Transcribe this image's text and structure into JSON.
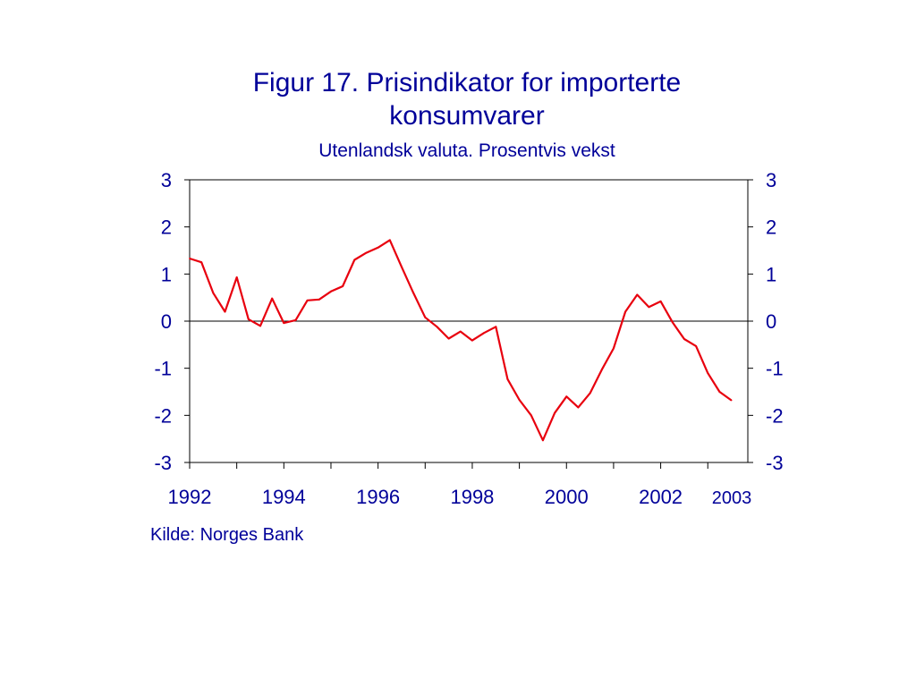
{
  "chart_data": {
    "type": "line",
    "title": "Figur 17. Prisindikator for importerte konsumvarer",
    "subtitle": "Utenlandsk valuta. Prosentvis vekst",
    "source": "Kilde: Norges Bank",
    "xlabel": "",
    "ylabel": "",
    "xlim": [
      1992,
      2003.85
    ],
    "ylim": [
      -3,
      3
    ],
    "y_ticks": [
      "-3",
      "-2",
      "-1",
      "0",
      "1",
      "2",
      "3"
    ],
    "x_ticks": [
      "1992",
      "1994",
      "1996",
      "1998",
      "2000",
      "2002",
      "2003"
    ],
    "grid": false,
    "line_color": "#e8000e",
    "text_color": "#000099",
    "series": [
      {
        "values": [
          [
            1992.0,
            1.33
          ],
          [
            1992.25,
            1.25
          ],
          [
            1992.5,
            0.6
          ],
          [
            1992.75,
            0.2
          ],
          [
            1993.0,
            0.93
          ],
          [
            1993.25,
            0.04
          ],
          [
            1993.5,
            -0.1
          ],
          [
            1993.75,
            0.48
          ],
          [
            1994.0,
            -0.04
          ],
          [
            1994.25,
            0.02
          ],
          [
            1994.5,
            0.44
          ],
          [
            1994.75,
            0.46
          ],
          [
            1995.0,
            0.63
          ],
          [
            1995.25,
            0.74
          ],
          [
            1995.5,
            1.3
          ],
          [
            1995.75,
            1.45
          ],
          [
            1996.0,
            1.56
          ],
          [
            1996.25,
            1.72
          ],
          [
            1996.5,
            1.15
          ],
          [
            1996.75,
            0.6
          ],
          [
            1997.0,
            0.08
          ],
          [
            1997.25,
            -0.12
          ],
          [
            1997.5,
            -0.37
          ],
          [
            1997.75,
            -0.22
          ],
          [
            1998.0,
            -0.41
          ],
          [
            1998.25,
            -0.25
          ],
          [
            1998.5,
            -0.12
          ],
          [
            1998.75,
            -1.23
          ],
          [
            1999.0,
            -1.67
          ],
          [
            1999.25,
            -2.0
          ],
          [
            1999.5,
            -2.53
          ],
          [
            1999.75,
            -1.95
          ],
          [
            2000.0,
            -1.6
          ],
          [
            2000.25,
            -1.83
          ],
          [
            2000.5,
            -1.53
          ],
          [
            2000.75,
            -1.03
          ],
          [
            2001.0,
            -0.58
          ],
          [
            2001.25,
            0.2
          ],
          [
            2001.5,
            0.56
          ],
          [
            2001.75,
            0.3
          ],
          [
            2002.0,
            0.42
          ],
          [
            2002.25,
            -0.02
          ],
          [
            2002.5,
            -0.38
          ],
          [
            2002.75,
            -0.53
          ],
          [
            2003.0,
            -1.1
          ],
          [
            2003.25,
            -1.5
          ],
          [
            2003.5,
            -1.68
          ]
        ]
      }
    ]
  }
}
